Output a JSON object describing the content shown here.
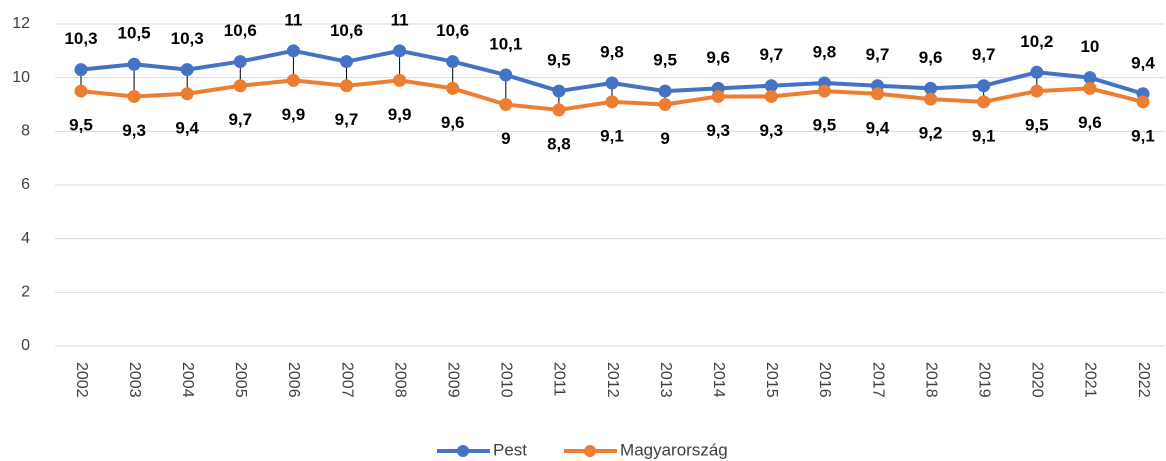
{
  "chart_data": {
    "type": "line",
    "categories": [
      "2002",
      "2003",
      "2004",
      "2005",
      "2006",
      "2007",
      "2008",
      "2009",
      "2010",
      "2011",
      "2012",
      "2013",
      "2014",
      "2015",
      "2016",
      "2017",
      "2018",
      "2019",
      "2020",
      "2021",
      "2022"
    ],
    "series": [
      {
        "name": "Pest",
        "color": "#4472c4",
        "values": [
          10.3,
          10.5,
          10.3,
          10.6,
          11,
          10.6,
          11,
          10.6,
          10.1,
          9.5,
          9.8,
          9.5,
          9.6,
          9.7,
          9.8,
          9.7,
          9.6,
          9.7,
          10.2,
          10,
          9.4
        ],
        "value_labels": [
          "10,3",
          "10,5",
          "10,3",
          "10,6",
          "11",
          "10,6",
          "11",
          "10,6",
          "10,1",
          "9,5",
          "9,8",
          "9,5",
          "9,6",
          "9,7",
          "9,8",
          "9,7",
          "9,6",
          "9,7",
          "10,2",
          "10",
          "9,4"
        ]
      },
      {
        "name": "Magyarország",
        "color": "#ed7d31",
        "values": [
          9.5,
          9.3,
          9.4,
          9.7,
          9.9,
          9.7,
          9.9,
          9.6,
          9,
          8.8,
          9.1,
          9,
          9.3,
          9.3,
          9.5,
          9.4,
          9.2,
          9.1,
          9.5,
          9.6,
          9.1
        ],
        "value_labels": [
          "9,5",
          "9,3",
          "9,4",
          "9,7",
          "9,9",
          "9,7",
          "9,9",
          "9,6",
          "9",
          "8,8",
          "9,1",
          "9",
          "9,3",
          "9,3",
          "9,5",
          "9,4",
          "9,2",
          "9,1",
          "9,5",
          "9,6",
          "9,1"
        ]
      }
    ],
    "ylim": [
      0,
      12
    ],
    "yticks": [
      0,
      2,
      4,
      6,
      8,
      10,
      12
    ],
    "grid": true,
    "high_low_lines": true,
    "legend": "bottom"
  }
}
